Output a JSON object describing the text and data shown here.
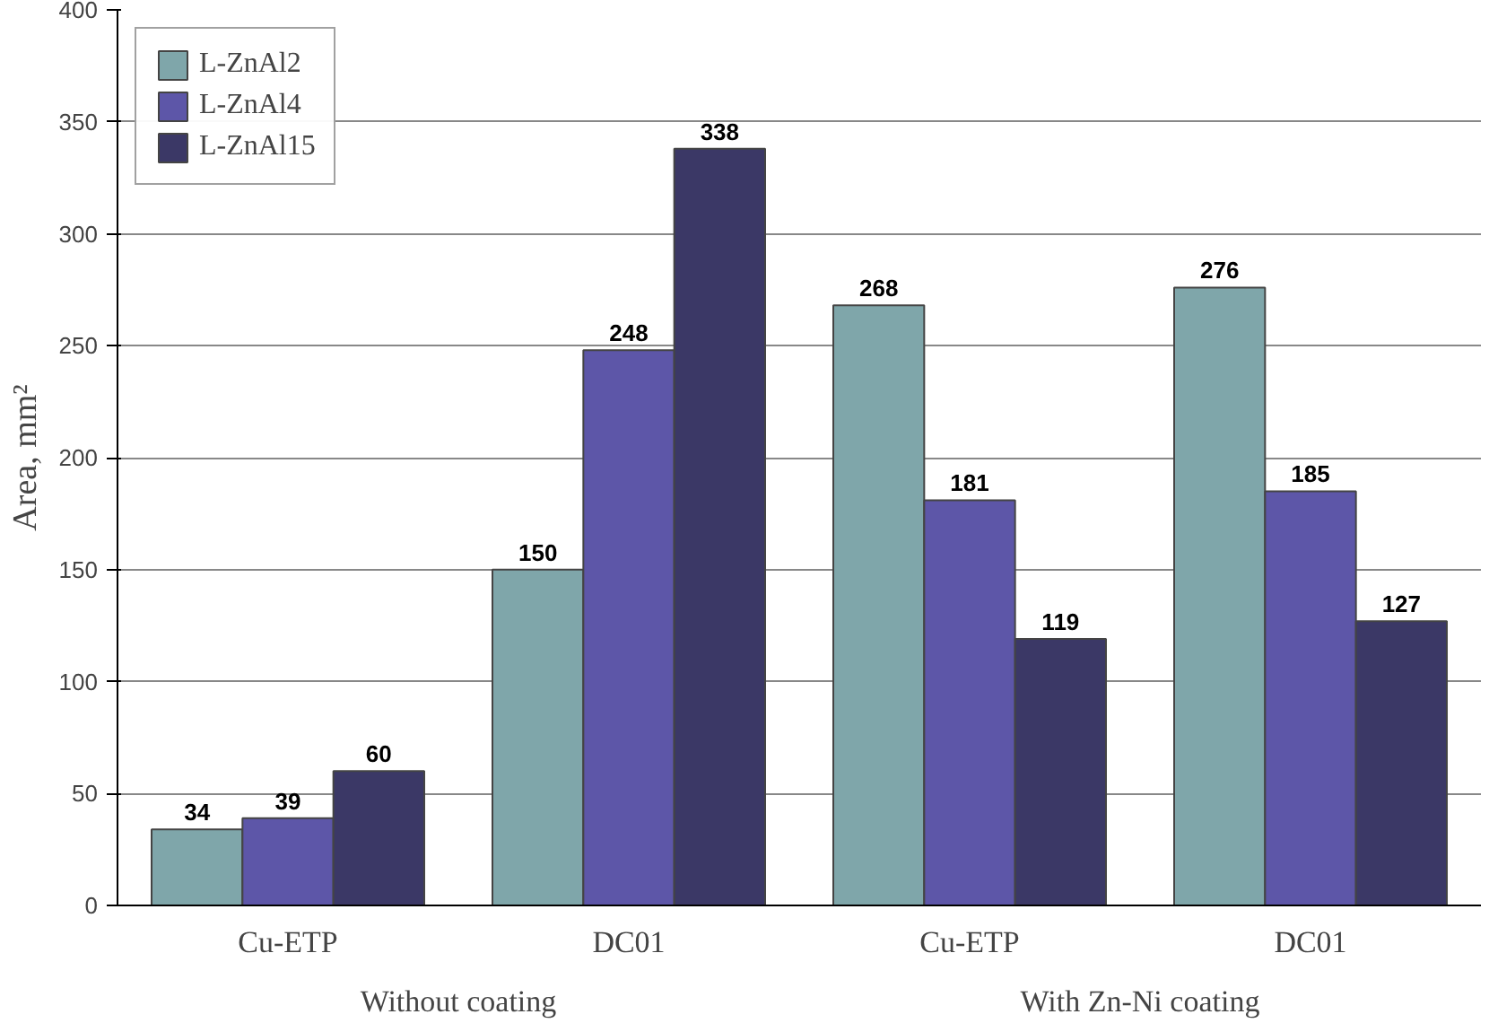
{
  "chart_data": {
    "type": "bar",
    "ylabel": "Area, mm²",
    "categories": [
      "Cu-ETP",
      "DC01",
      "Cu-ETP",
      "DC01"
    ],
    "series": [
      {
        "name": "L-ZnAl2",
        "color": "#7fa6aa",
        "values": [
          34,
          150,
          268,
          276
        ]
      },
      {
        "name": "L-ZnAl4",
        "color": "#5d56a8",
        "values": [
          39,
          248,
          181,
          185
        ]
      },
      {
        "name": "L-ZnAl15",
        "color": "#3b3866",
        "values": [
          60,
          338,
          119,
          127
        ]
      }
    ],
    "ylim": [
      0,
      400
    ],
    "yticks": [
      0,
      50,
      100,
      150,
      200,
      250,
      300,
      350,
      400
    ],
    "grid": "y",
    "legend": "top left",
    "data_labels": true,
    "annotations": [
      "Without coating",
      "With Zn-Ni coating"
    ]
  }
}
